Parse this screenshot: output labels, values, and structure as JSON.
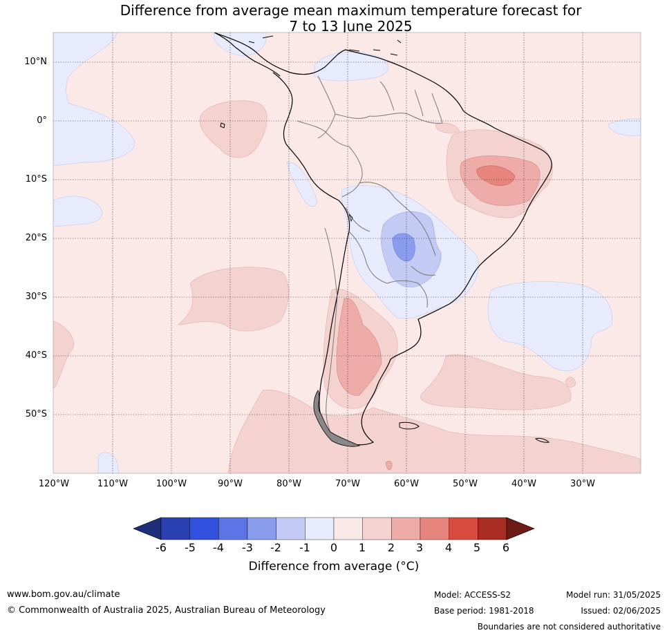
{
  "title": {
    "line1": "Difference from average mean maximum temperature forecast for",
    "line2": "7 to 13 June 2025"
  },
  "latitude_labels": [
    "10°N",
    "0°",
    "10°S",
    "20°S",
    "30°S",
    "40°S",
    "50°S"
  ],
  "longitude_labels": [
    "120°W",
    "110°W",
    "100°W",
    "90°W",
    "80°W",
    "70°W",
    "60°W",
    "50°W",
    "40°W",
    "30°W"
  ],
  "colorbar": {
    "ticks": [
      "-6",
      "-5",
      "-4",
      "-3",
      "-2",
      "-1",
      "0",
      "1",
      "2",
      "3",
      "4",
      "5",
      "6"
    ],
    "colors": [
      "#1f2e7a",
      "#2a3fb1",
      "#3050e0",
      "#5c74e6",
      "#8a9cec",
      "#c3caf4",
      "#e8ebfb",
      "#fbe9e8",
      "#f4d2d0",
      "#edaca8",
      "#e6857e",
      "#d94a3e",
      "#a82c22",
      "#6e1b16"
    ],
    "label": "Difference from average (°C)"
  },
  "footer": {
    "website": "www.bom.gov.au/climate",
    "copyright": "© Commonwealth of Australia 2025, Australian Bureau of Meteorology",
    "model": "Model: ACCESS-S2",
    "base_period": "Base period: 1981-2018",
    "model_run": "Model run: 31/05/2025",
    "issued": "Issued: 02/06/2025",
    "disclaimer": "Boundaries are not considered authoritative"
  }
}
